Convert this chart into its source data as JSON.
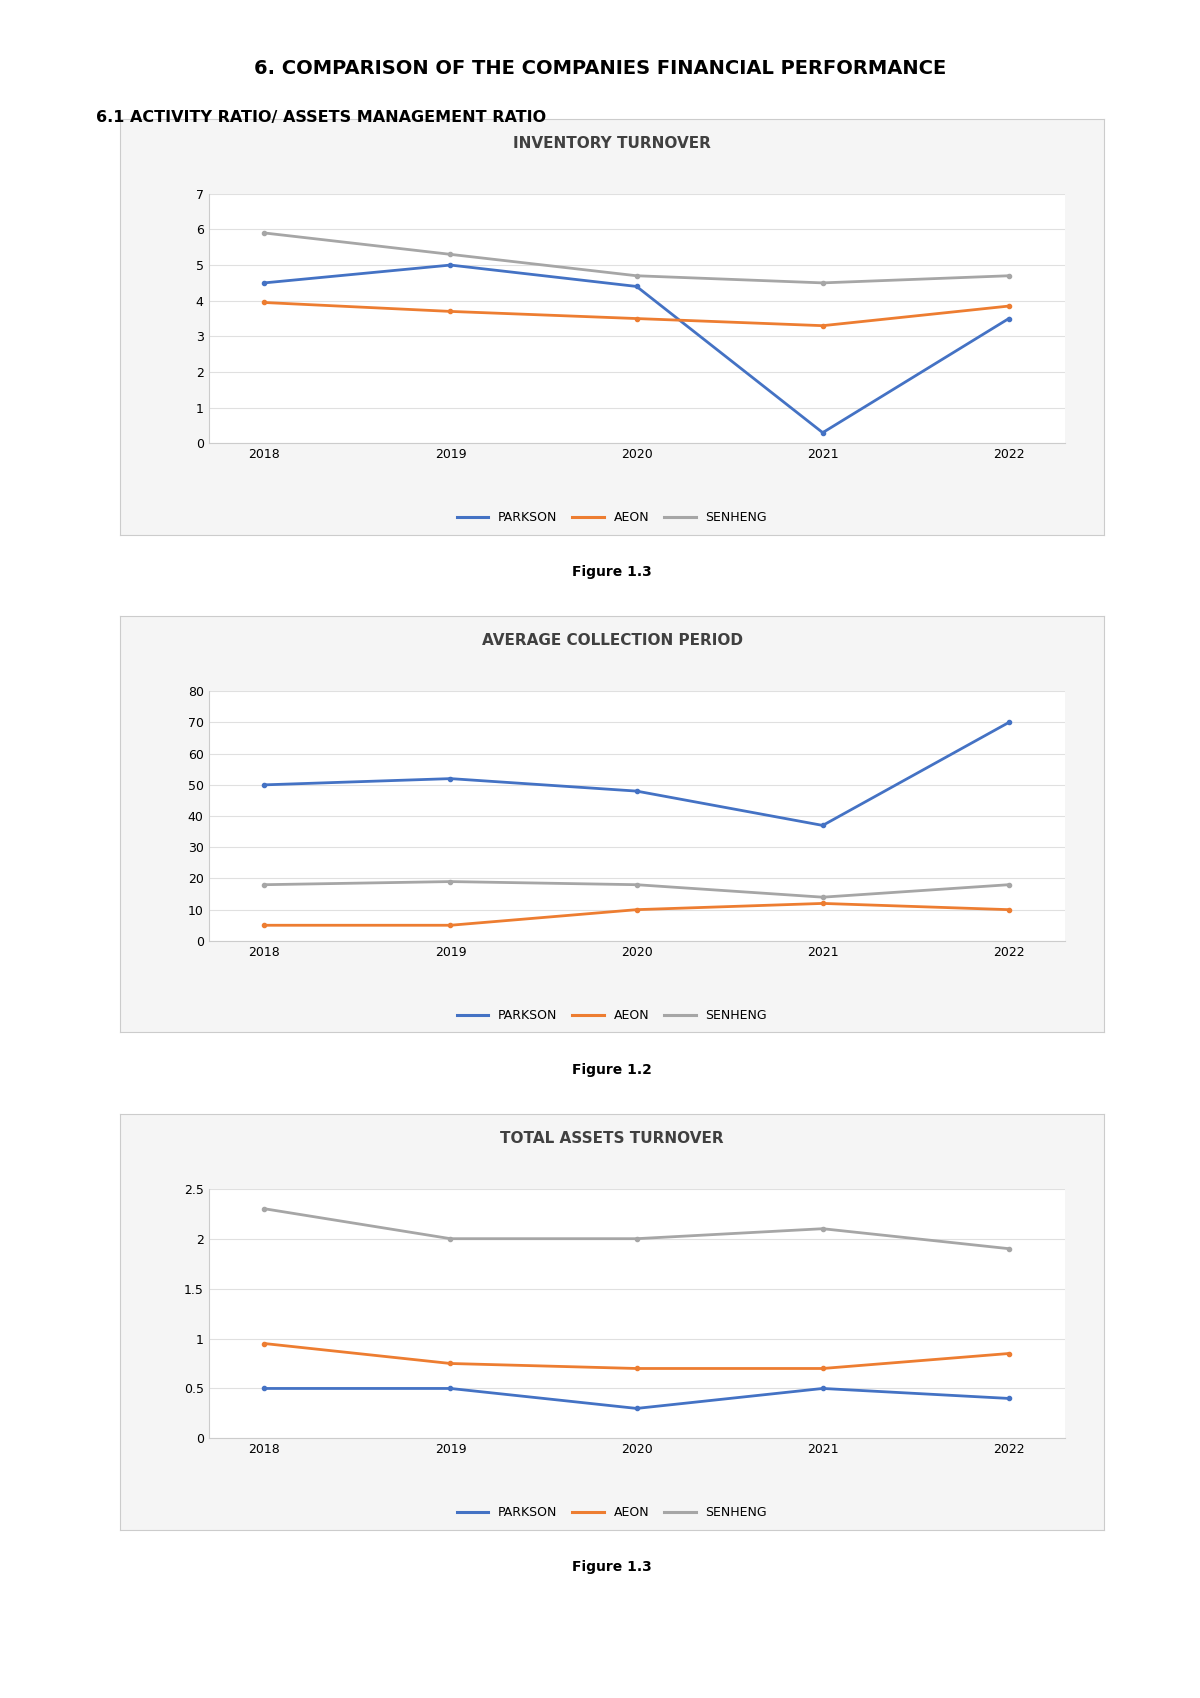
{
  "page_title": "6. COMPARISON OF THE COMPANIES FINANCIAL PERFORMANCE",
  "section_title": "6.1 ACTIVITY RATIO/ ASSETS MANAGEMENT RATIO",
  "chart1": {
    "title": "INVENTORY TURNOVER",
    "years": [
      2018,
      2019,
      2020,
      2021,
      2022
    ],
    "parkson": [
      4.5,
      5.0,
      4.4,
      0.3,
      3.5
    ],
    "aeon": [
      3.95,
      3.7,
      3.5,
      3.3,
      3.85
    ],
    "senheng": [
      5.9,
      5.3,
      4.7,
      4.5,
      4.7
    ],
    "ylim": [
      0,
      7
    ],
    "yticks": [
      0,
      1,
      2,
      3,
      4,
      5,
      6,
      7
    ],
    "figure_label": "Figure 1.3"
  },
  "chart2": {
    "title": "AVERAGE COLLECTION PERIOD",
    "years": [
      2018,
      2019,
      2020,
      2021,
      2022
    ],
    "parkson": [
      50,
      52,
      48,
      37,
      70
    ],
    "aeon": [
      5,
      5,
      10,
      12,
      10
    ],
    "senheng": [
      18,
      19,
      18,
      14,
      18
    ],
    "ylim": [
      0,
      80
    ],
    "yticks": [
      0,
      10,
      20,
      30,
      40,
      50,
      60,
      70,
      80
    ],
    "figure_label": "Figure 1.2"
  },
  "chart3": {
    "title": "TOTAL ASSETS TURNOVER",
    "years": [
      2018,
      2019,
      2020,
      2021,
      2022
    ],
    "parkson": [
      0.5,
      0.5,
      0.3,
      0.5,
      0.4
    ],
    "aeon": [
      0.95,
      0.75,
      0.7,
      0.7,
      0.85
    ],
    "senheng": [
      2.3,
      2.0,
      2.0,
      2.1,
      1.9
    ],
    "ylim": [
      0,
      2.5
    ],
    "yticks": [
      0,
      0.5,
      1,
      1.5,
      2,
      2.5
    ],
    "figure_label": "Figure 1.3"
  },
  "colors": {
    "parkson": "#4472C4",
    "aeon": "#ED7D31",
    "senheng": "#A6A6A6"
  },
  "panel_bg": "#F5F5F5",
  "plot_bg": "#FFFFFF",
  "line_width": 2.0,
  "grid_color": "#E0E0E0",
  "title_color": "#404040"
}
